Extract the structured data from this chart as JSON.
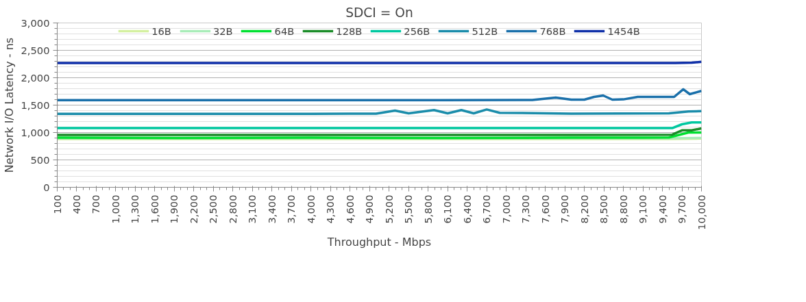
{
  "chart_data": {
    "type": "line",
    "title": "SDCI = On",
    "xlabel": "Throughput - Mbps",
    "ylabel": "Network I/O Latency - ns",
    "xlim": [
      100,
      10000
    ],
    "xticks": [
      {
        "value": 100,
        "label": "100"
      },
      {
        "value": 400,
        "label": "400"
      },
      {
        "value": 700,
        "label": "700"
      },
      {
        "value": 1000,
        "label": "1,000"
      },
      {
        "value": 1300,
        "label": "1,300"
      },
      {
        "value": 1600,
        "label": "1,600"
      },
      {
        "value": 1900,
        "label": "1,900"
      },
      {
        "value": 2200,
        "label": "2,200"
      },
      {
        "value": 2500,
        "label": "2,500"
      },
      {
        "value": 2800,
        "label": "2,800"
      },
      {
        "value": 3100,
        "label": "3,100"
      },
      {
        "value": 3400,
        "label": "3,400"
      },
      {
        "value": 3700,
        "label": "3,700"
      },
      {
        "value": 4000,
        "label": "4,000"
      },
      {
        "value": 4300,
        "label": "4,300"
      },
      {
        "value": 4600,
        "label": "4,600"
      },
      {
        "value": 4900,
        "label": "4,900"
      },
      {
        "value": 5200,
        "label": "5,200"
      },
      {
        "value": 5500,
        "label": "5,500"
      },
      {
        "value": 5800,
        "label": "5,800"
      },
      {
        "value": 6100,
        "label": "6,100"
      },
      {
        "value": 6400,
        "label": "6,400"
      },
      {
        "value": 6700,
        "label": "6,700"
      },
      {
        "value": 7000,
        "label": "7,000"
      },
      {
        "value": 7300,
        "label": "7,300"
      },
      {
        "value": 7600,
        "label": "7,600"
      },
      {
        "value": 7900,
        "label": "7,900"
      },
      {
        "value": 8200,
        "label": "8,200"
      },
      {
        "value": 8500,
        "label": "8,500"
      },
      {
        "value": 8800,
        "label": "8,800"
      },
      {
        "value": 9100,
        "label": "9,100"
      },
      {
        "value": 9400,
        "label": "9,400"
      },
      {
        "value": 9700,
        "label": "9,700"
      },
      {
        "value": 10000,
        "label": "10,000"
      }
    ],
    "ylim": [
      0,
      3000
    ],
    "yticks": [
      0,
      500,
      {
        "value": 1000,
        "label": "1,000"
      },
      {
        "value": 1500,
        "label": "1,500"
      },
      {
        "value": 2000,
        "label": "2,000"
      },
      {
        "value": 2500,
        "label": "2,500"
      },
      {
        "value": 3000,
        "label": "3,000"
      }
    ],
    "grid": "y",
    "legend": "top",
    "marker": "none",
    "line_style": "solid",
    "series": [
      {
        "name": "16B",
        "color": "#d4f0a0",
        "x": [
          100,
          2000,
          4000,
          6000,
          8000,
          9500,
          10000
        ],
        "values": [
          880,
          880,
          880,
          880,
          880,
          880,
          890
        ]
      },
      {
        "name": "32B",
        "color": "#a8ecb8",
        "x": [
          100,
          2000,
          4000,
          6000,
          8000,
          9500,
          10000
        ],
        "values": [
          895,
          895,
          895,
          895,
          895,
          895,
          900
        ]
      },
      {
        "name": "64B",
        "color": "#00e030",
        "x": [
          100,
          2000,
          4000,
          6000,
          8000,
          9100,
          9500,
          9800,
          10000
        ],
        "values": [
          905,
          900,
          905,
          900,
          905,
          905,
          910,
          1000,
          1000
        ]
      },
      {
        "name": "128B",
        "color": "#1a8c28",
        "x": [
          100,
          2000,
          4000,
          6000,
          8000,
          9550,
          9700,
          9850,
          10000
        ],
        "values": [
          955,
          955,
          955,
          955,
          955,
          960,
          1040,
          1040,
          1075
        ]
      },
      {
        "name": "256B",
        "color": "#00c8a0",
        "x": [
          100,
          2000,
          4000,
          6000,
          8000,
          9550,
          9700,
          9850,
          10000
        ],
        "values": [
          1080,
          1080,
          1080,
          1080,
          1080,
          1080,
          1150,
          1185,
          1185
        ]
      },
      {
        "name": "512B",
        "color": "#1a8caa",
        "x": [
          100,
          2000,
          4000,
          5000,
          5290,
          5500,
          5890,
          6100,
          6310,
          6500,
          6700,
          6900,
          8000,
          9500,
          9800,
          10000
        ],
        "values": [
          1340,
          1340,
          1340,
          1345,
          1400,
          1350,
          1410,
          1350,
          1410,
          1350,
          1420,
          1360,
          1345,
          1350,
          1385,
          1390
        ]
      },
      {
        "name": "768B",
        "color": "#1a70aa",
        "x": [
          100,
          2000,
          4000,
          6000,
          7400,
          7760,
          8000,
          8200,
          8350,
          8490,
          8630,
          8800,
          9020,
          9400,
          9580,
          9720,
          9820,
          10000
        ],
        "values": [
          1590,
          1590,
          1590,
          1590,
          1595,
          1637,
          1600,
          1600,
          1650,
          1675,
          1600,
          1605,
          1650,
          1650,
          1650,
          1790,
          1700,
          1760
        ]
      },
      {
        "name": "1454B",
        "color": "#1030a8",
        "x": [
          100,
          2000,
          4000,
          6000,
          8000,
          9600,
          9850,
          10000
        ],
        "values": [
          2270,
          2270,
          2270,
          2270,
          2270,
          2270,
          2275,
          2290
        ]
      }
    ]
  }
}
